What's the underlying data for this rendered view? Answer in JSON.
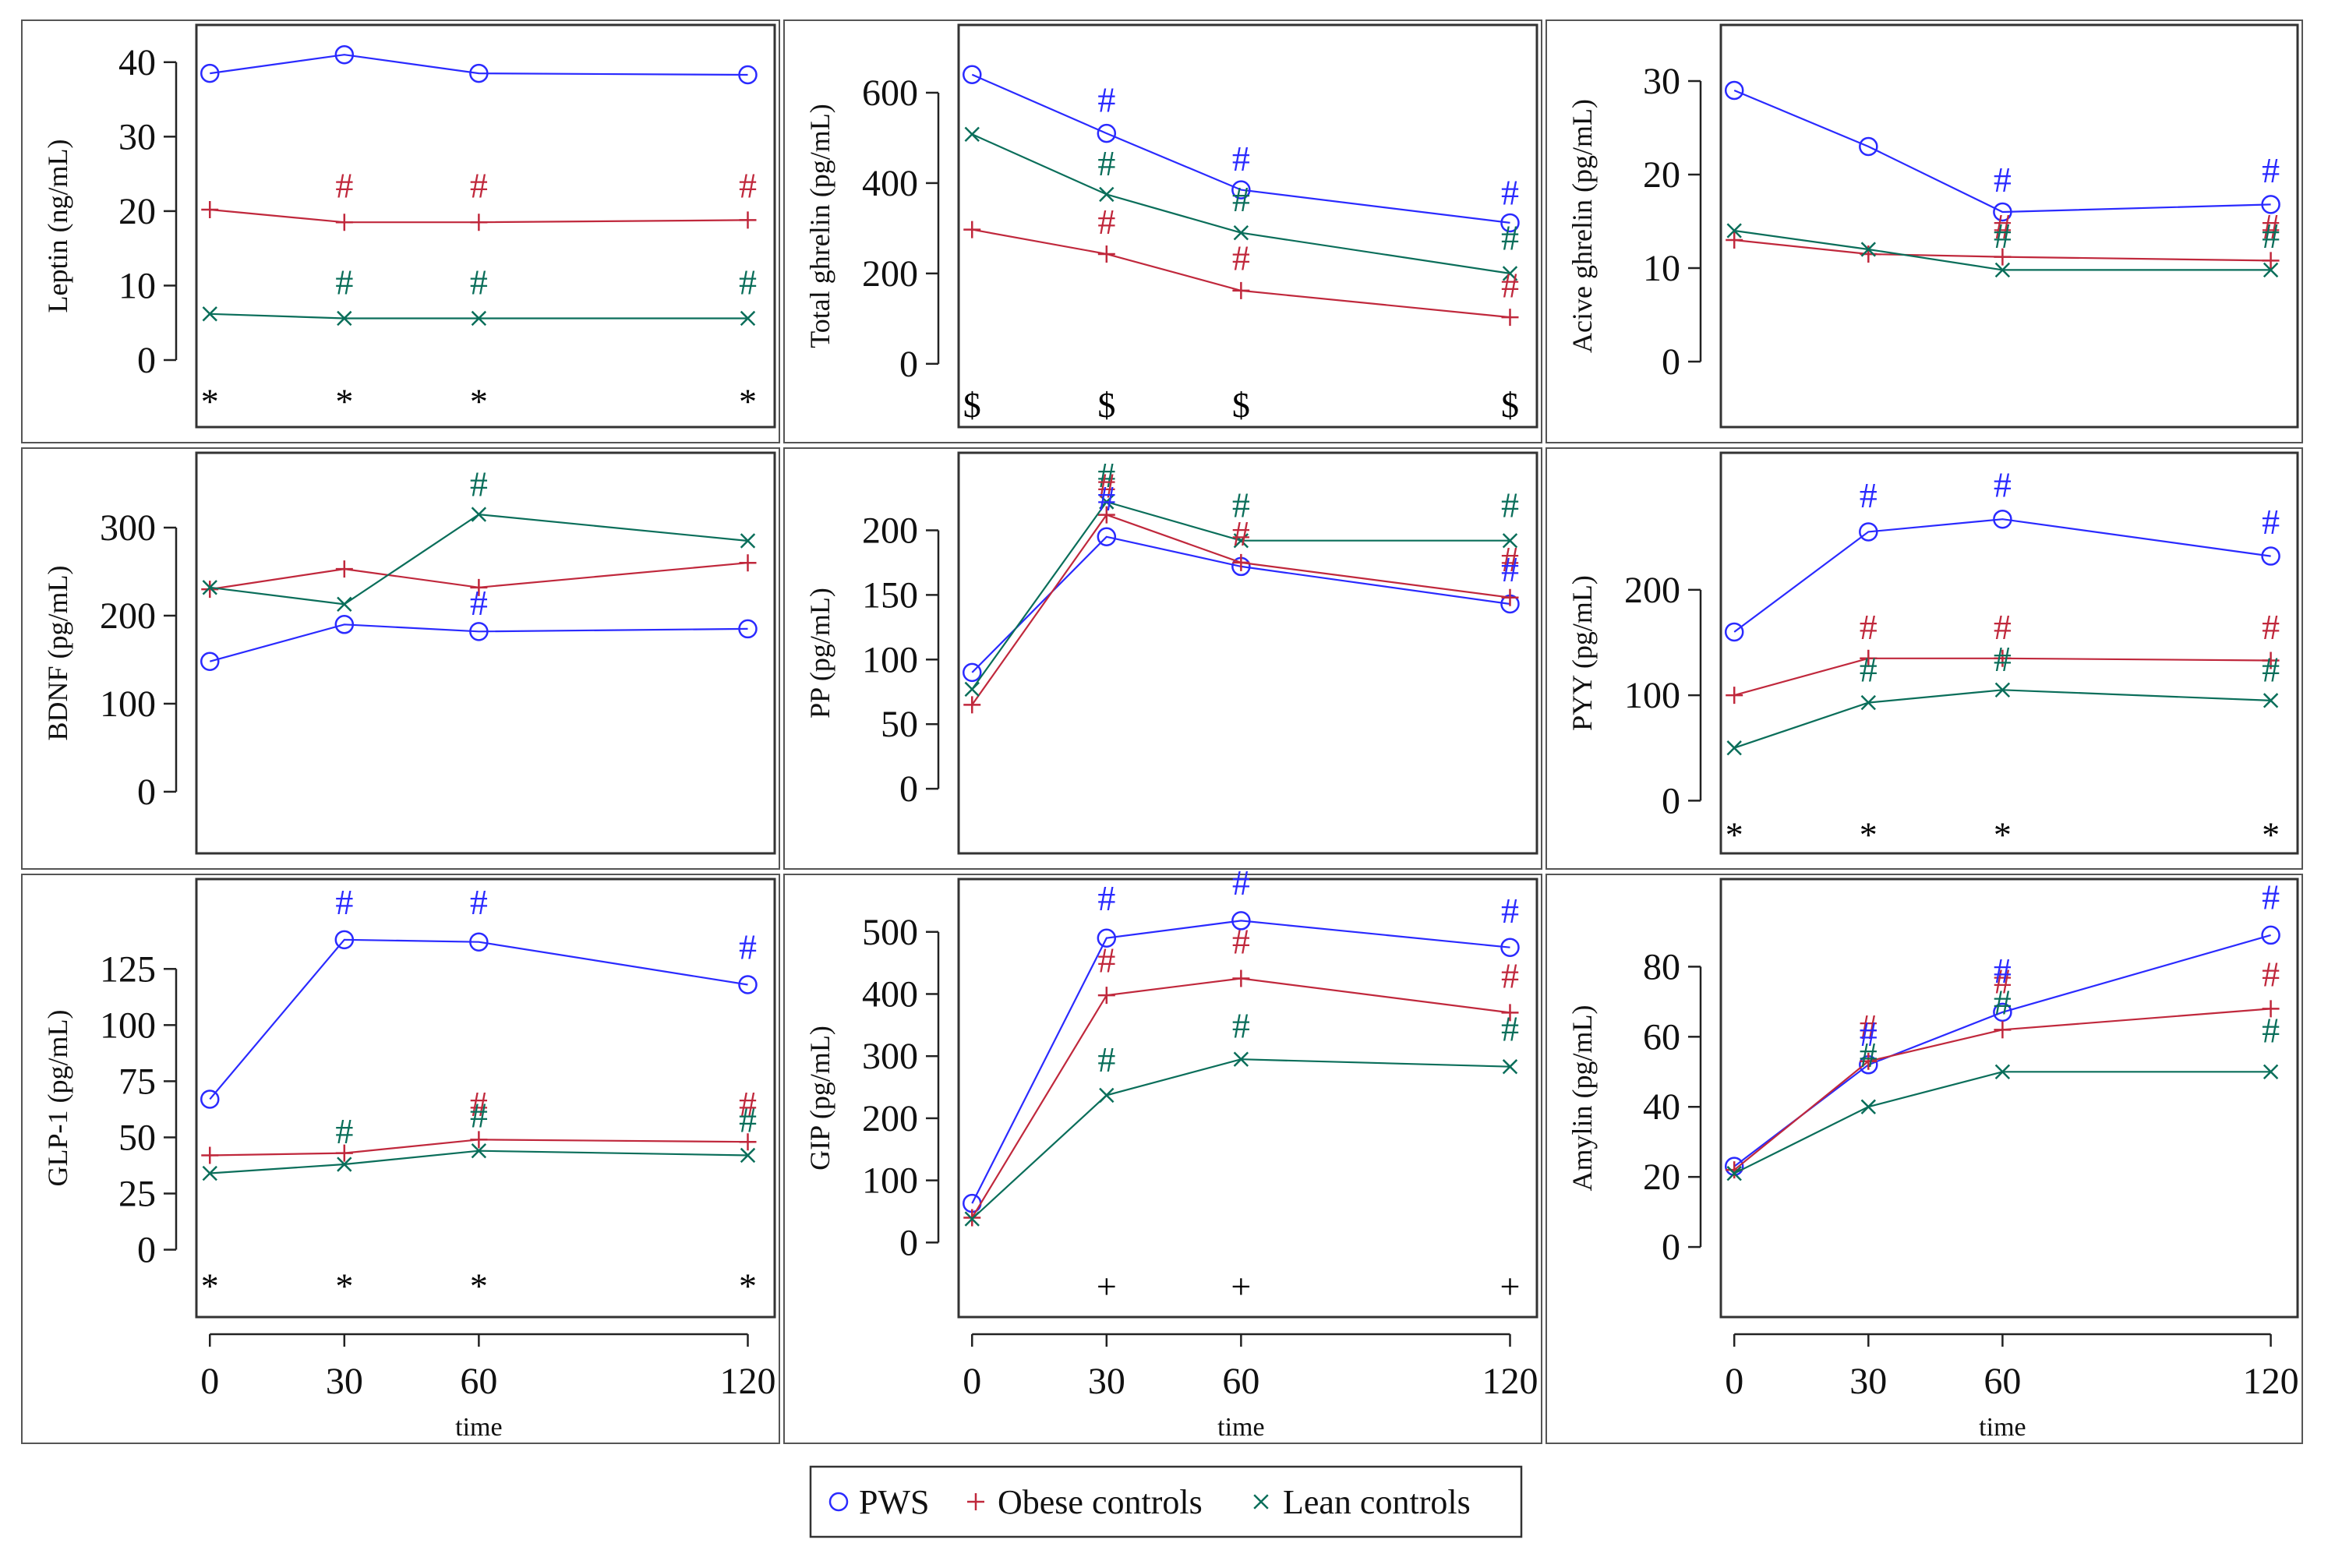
{
  "chart_data": {
    "type": "line",
    "legend": {
      "position": "bottom-center",
      "entries": [
        {
          "series": "pws",
          "name": "PWS",
          "marker": "circle",
          "color": "#2a2aff"
        },
        {
          "series": "obese",
          "name": "Obese controls",
          "marker": "plus",
          "color": "#c0283c"
        },
        {
          "series": "lean",
          "name": "Lean controls",
          "marker": "x",
          "color": "#0a6e5a"
        }
      ]
    },
    "x": [
      0,
      30,
      60,
      120
    ],
    "x_tick_labels": [
      "0",
      "30",
      "60",
      "120"
    ],
    "xlabel": "time",
    "panels": [
      {
        "id": "leptin",
        "ylabel": "Leptin (ng/mL)",
        "ylim": [
          -9,
          45
        ],
        "yticks": [
          0,
          10,
          20,
          30,
          40
        ],
        "series": [
          {
            "key": "pws",
            "values": [
              38.5,
              41,
              38.5,
              38.3
            ]
          },
          {
            "key": "obese",
            "values": [
              20.2,
              18.5,
              18.5,
              18.8
            ]
          },
          {
            "key": "lean",
            "values": [
              6.2,
              5.6,
              5.6,
              5.6
            ]
          }
        ],
        "sig_marks": [
          {
            "x": 30,
            "y": 23.5,
            "text": "#",
            "color": "#c0283c"
          },
          {
            "x": 60,
            "y": 23.5,
            "text": "#",
            "color": "#c0283c"
          },
          {
            "x": 120,
            "y": 23.5,
            "text": "#",
            "color": "#c0283c"
          },
          {
            "x": 30,
            "y": 10.5,
            "text": "#",
            "color": "#0a6e5a"
          },
          {
            "x": 60,
            "y": 10.5,
            "text": "#",
            "color": "#0a6e5a"
          },
          {
            "x": 120,
            "y": 10.5,
            "text": "#",
            "color": "#0a6e5a"
          },
          {
            "x": 0,
            "y": -5.5,
            "text": "*",
            "color": "#000000"
          },
          {
            "x": 30,
            "y": -5.5,
            "text": "*",
            "color": "#000000"
          },
          {
            "x": 60,
            "y": -5.5,
            "text": "*",
            "color": "#000000"
          },
          {
            "x": 120,
            "y": -5.5,
            "text": "*",
            "color": "#000000"
          }
        ]
      },
      {
        "id": "total-ghrelin",
        "ylabel": "Total ghrelin (pg/mL)",
        "ylim": [
          -140,
          750
        ],
        "yticks": [
          0,
          200,
          400,
          600
        ],
        "series": [
          {
            "key": "pws",
            "values": [
              640,
              510,
              385,
              312
            ]
          },
          {
            "key": "obese",
            "values": [
              297,
              243,
              162,
              103
            ]
          },
          {
            "key": "lean",
            "values": [
              508,
              375,
              290,
              200
            ]
          }
        ],
        "sig_marks": [
          {
            "x": 30,
            "y": 585,
            "text": "#",
            "color": "#2a2aff"
          },
          {
            "x": 60,
            "y": 455,
            "text": "#",
            "color": "#2a2aff"
          },
          {
            "x": 120,
            "y": 380,
            "text": "#",
            "color": "#2a2aff"
          },
          {
            "x": 30,
            "y": 445,
            "text": "#",
            "color": "#0a6e5a"
          },
          {
            "x": 60,
            "y": 365,
            "text": "#",
            "color": "#0a6e5a"
          },
          {
            "x": 120,
            "y": 280,
            "text": "#",
            "color": "#0a6e5a"
          },
          {
            "x": 30,
            "y": 315,
            "text": "#",
            "color": "#c0283c"
          },
          {
            "x": 60,
            "y": 235,
            "text": "#",
            "color": "#c0283c"
          },
          {
            "x": 120,
            "y": 175,
            "text": "#",
            "color": "#c0283c"
          },
          {
            "x": 0,
            "y": -90,
            "text": "$",
            "color": "#000000"
          },
          {
            "x": 30,
            "y": -90,
            "text": "$",
            "color": "#000000"
          },
          {
            "x": 60,
            "y": -90,
            "text": "$",
            "color": "#000000"
          },
          {
            "x": 120,
            "y": -90,
            "text": "$",
            "color": "#000000"
          }
        ]
      },
      {
        "id": "active-ghrelin",
        "ylabel": "Acive ghrelin (pg/mL)",
        "ylim": [
          -7,
          36
        ],
        "yticks": [
          0,
          10,
          20,
          30
        ],
        "series": [
          {
            "key": "pws",
            "values": [
              29,
              23,
              16,
              16.8
            ]
          },
          {
            "key": "obese",
            "values": [
              13,
              11.5,
              11.2,
              10.8
            ]
          },
          {
            "key": "lean",
            "values": [
              14,
              12,
              9.8,
              9.8
            ]
          }
        ],
        "sig_marks": [
          {
            "x": 60,
            "y": 19.5,
            "text": "#",
            "color": "#2a2aff"
          },
          {
            "x": 120,
            "y": 20.5,
            "text": "#",
            "color": "#2a2aff"
          },
          {
            "x": 60,
            "y": 14.5,
            "text": "#",
            "color": "#c0283c"
          },
          {
            "x": 120,
            "y": 14.5,
            "text": "#",
            "color": "#c0283c"
          },
          {
            "x": 60,
            "y": 13.5,
            "text": "#",
            "color": "#0a6e5a"
          },
          {
            "x": 120,
            "y": 13.5,
            "text": "#",
            "color": "#0a6e5a"
          }
        ]
      },
      {
        "id": "bdnf",
        "ylabel": "BDNF (pg/mL)",
        "ylim": [
          -70,
          385
        ],
        "yticks": [
          0,
          100,
          200,
          300
        ],
        "series": [
          {
            "key": "pws",
            "values": [
              148,
              190,
              182,
              185
            ]
          },
          {
            "key": "obese",
            "values": [
              230,
              253,
              232,
              260
            ]
          },
          {
            "key": "lean",
            "values": [
              232,
              213,
              315,
              285
            ]
          }
        ],
        "sig_marks": [
          {
            "x": 60,
            "y": 350,
            "text": "#",
            "color": "#0a6e5a"
          },
          {
            "x": 60,
            "y": 215,
            "text": "#",
            "color": "#2a2aff"
          }
        ]
      },
      {
        "id": "pp",
        "ylabel": "PP (pg/mL)",
        "ylim": [
          -50,
          260
        ],
        "yticks": [
          0,
          50,
          100,
          150,
          200
        ],
        "series": [
          {
            "key": "pws",
            "values": [
              90,
              195,
              172,
              143
            ]
          },
          {
            "key": "obese",
            "values": [
              65,
              212,
              175,
              148
            ]
          },
          {
            "key": "lean",
            "values": [
              77,
              222,
              192,
              192
            ]
          }
        ],
        "sig_marks": [
          {
            "x": 30,
            "y": 243,
            "text": "#",
            "color": "#0a6e5a"
          },
          {
            "x": 30,
            "y": 235,
            "text": "#",
            "color": "#c0283c"
          },
          {
            "x": 30,
            "y": 225,
            "text": "#",
            "color": "#2a2aff"
          },
          {
            "x": 60,
            "y": 220,
            "text": "#",
            "color": "#0a6e5a"
          },
          {
            "x": 60,
            "y": 198,
            "text": "#",
            "color": "#c0283c"
          },
          {
            "x": 120,
            "y": 220,
            "text": "#",
            "color": "#0a6e5a"
          },
          {
            "x": 120,
            "y": 178,
            "text": "#",
            "color": "#c0283c"
          },
          {
            "x": 120,
            "y": 170,
            "text": "#",
            "color": "#2a2aff"
          }
        ]
      },
      {
        "id": "pyy",
        "ylabel": "PYY (pg/mL)",
        "ylim": [
          -50,
          330
        ],
        "yticks": [
          0,
          100,
          200
        ],
        "series": [
          {
            "key": "pws",
            "values": [
              160,
              255,
              267,
              232
            ]
          },
          {
            "key": "obese",
            "values": [
              100,
              135,
              135,
              133
            ]
          },
          {
            "key": "lean",
            "values": [
              50,
              93,
              105,
              95
            ]
          }
        ],
        "sig_marks": [
          {
            "x": 30,
            "y": 290,
            "text": "#",
            "color": "#2a2aff"
          },
          {
            "x": 60,
            "y": 300,
            "text": "#",
            "color": "#2a2aff"
          },
          {
            "x": 120,
            "y": 265,
            "text": "#",
            "color": "#2a2aff"
          },
          {
            "x": 30,
            "y": 165,
            "text": "#",
            "color": "#c0283c"
          },
          {
            "x": 60,
            "y": 165,
            "text": "#",
            "color": "#c0283c"
          },
          {
            "x": 120,
            "y": 165,
            "text": "#",
            "color": "#c0283c"
          },
          {
            "x": 30,
            "y": 125,
            "text": "#",
            "color": "#0a6e5a"
          },
          {
            "x": 60,
            "y": 135,
            "text": "#",
            "color": "#0a6e5a"
          },
          {
            "x": 120,
            "y": 125,
            "text": "#",
            "color": "#0a6e5a"
          },
          {
            "x": 0,
            "y": -32,
            "text": "*",
            "color": "#000000"
          },
          {
            "x": 30,
            "y": -32,
            "text": "*",
            "color": "#000000"
          },
          {
            "x": 60,
            "y": -32,
            "text": "*",
            "color": "#000000"
          },
          {
            "x": 120,
            "y": -32,
            "text": "*",
            "color": "#000000"
          }
        ]
      },
      {
        "id": "glp1",
        "ylabel": "GLP-1 (pg/mL)",
        "ylim": [
          -30,
          165
        ],
        "yticks": [
          0,
          25,
          50,
          75,
          100,
          125
        ],
        "series": [
          {
            "key": "pws",
            "values": [
              67,
              138,
              137,
              118
            ]
          },
          {
            "key": "obese",
            "values": [
              42,
              43,
              49,
              48
            ]
          },
          {
            "key": "lean",
            "values": [
              34,
              38,
              44,
              42
            ]
          }
        ],
        "sig_marks": [
          {
            "x": 30,
            "y": 155,
            "text": "#",
            "color": "#2a2aff"
          },
          {
            "x": 60,
            "y": 155,
            "text": "#",
            "color": "#2a2aff"
          },
          {
            "x": 120,
            "y": 135,
            "text": "#",
            "color": "#2a2aff"
          },
          {
            "x": 60,
            "y": 65,
            "text": "#",
            "color": "#c0283c"
          },
          {
            "x": 120,
            "y": 65,
            "text": "#",
            "color": "#c0283c"
          },
          {
            "x": 30,
            "y": 53,
            "text": "#",
            "color": "#0a6e5a"
          },
          {
            "x": 60,
            "y": 60,
            "text": "#",
            "color": "#0a6e5a"
          },
          {
            "x": 120,
            "y": 58,
            "text": "#",
            "color": "#0a6e5a"
          },
          {
            "x": 0,
            "y": -16,
            "text": "*",
            "color": "#000000"
          },
          {
            "x": 30,
            "y": -16,
            "text": "*",
            "color": "#000000"
          },
          {
            "x": 60,
            "y": -16,
            "text": "*",
            "color": "#000000"
          },
          {
            "x": 120,
            "y": -16,
            "text": "*",
            "color": "#000000"
          }
        ]
      },
      {
        "id": "gip",
        "ylabel": "GIP (pg/mL)",
        "ylim": [
          -120,
          585
        ],
        "yticks": [
          0,
          100,
          200,
          300,
          400,
          500
        ],
        "series": [
          {
            "key": "pws",
            "values": [
              63,
              490,
              518,
              475
            ]
          },
          {
            "key": "obese",
            "values": [
              40,
              398,
              425,
              370
            ]
          },
          {
            "key": "lean",
            "values": [
              38,
              237,
              295,
              283
            ]
          }
        ],
        "sig_marks": [
          {
            "x": 30,
            "y": 555,
            "text": "#",
            "color": "#2a2aff"
          },
          {
            "x": 60,
            "y": 580,
            "text": "#",
            "color": "#2a2aff"
          },
          {
            "x": 120,
            "y": 535,
            "text": "#",
            "color": "#2a2aff"
          },
          {
            "x": 30,
            "y": 455,
            "text": "#",
            "color": "#c0283c"
          },
          {
            "x": 60,
            "y": 485,
            "text": "#",
            "color": "#c0283c"
          },
          {
            "x": 120,
            "y": 430,
            "text": "#",
            "color": "#c0283c"
          },
          {
            "x": 30,
            "y": 295,
            "text": "#",
            "color": "#0a6e5a"
          },
          {
            "x": 60,
            "y": 350,
            "text": "#",
            "color": "#0a6e5a"
          },
          {
            "x": 120,
            "y": 345,
            "text": "#",
            "color": "#0a6e5a"
          },
          {
            "x": 30,
            "y": -70,
            "text": "+",
            "color": "#000000"
          },
          {
            "x": 60,
            "y": -70,
            "text": "+",
            "color": "#000000"
          },
          {
            "x": 120,
            "y": -70,
            "text": "+",
            "color": "#000000"
          }
        ]
      },
      {
        "id": "amylin",
        "ylabel": "Amylin (pg/mL)",
        "ylim": [
          -20,
          105
        ],
        "yticks": [
          0,
          20,
          40,
          60,
          80
        ],
        "series": [
          {
            "key": "pws",
            "values": [
              23,
              52,
              67,
              89
            ]
          },
          {
            "key": "obese",
            "values": [
              22,
              53,
              62,
              68
            ]
          },
          {
            "key": "lean",
            "values": [
              21,
              40,
              50,
              50
            ]
          }
        ],
        "sig_marks": [
          {
            "x": 120,
            "y": 100,
            "text": "#",
            "color": "#2a2aff"
          },
          {
            "x": 30,
            "y": 63,
            "text": "#",
            "color": "#c0283c"
          },
          {
            "x": 60,
            "y": 76,
            "text": "#",
            "color": "#c0283c"
          },
          {
            "x": 120,
            "y": 78,
            "text": "#",
            "color": "#c0283c"
          },
          {
            "x": 30,
            "y": 61,
            "text": "#",
            "color": "#2a2aff"
          },
          {
            "x": 60,
            "y": 79,
            "text": "#",
            "color": "#2a2aff"
          },
          {
            "x": 30,
            "y": 55,
            "text": "#",
            "color": "#0a6e5a"
          },
          {
            "x": 60,
            "y": 70,
            "text": "#",
            "color": "#0a6e5a"
          },
          {
            "x": 120,
            "y": 62,
            "text": "#",
            "color": "#0a6e5a"
          }
        ]
      }
    ]
  }
}
